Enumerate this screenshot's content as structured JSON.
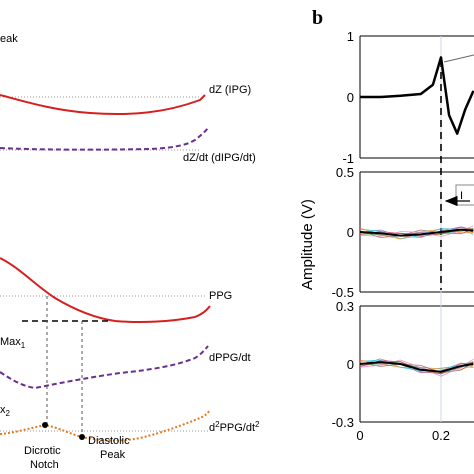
{
  "panel_a": {
    "partial_label": "eak",
    "signals": {
      "impedance": "dZ (IPG)",
      "impedance_derivative": "dZ/dt (dIPG/dt)",
      "ppg": "PPG",
      "ppg_first_derivative": "dPPG/dt",
      "ppg_second_derivative": "d²PPG/dt²"
    },
    "markers": {
      "max1": "Max₁",
      "max2": "x₂",
      "dicrotic_notch": [
        "Dicrotic",
        "Notch"
      ],
      "diastolic_peak": [
        "Diastolic",
        "Peak"
      ]
    },
    "colors": {
      "solid_trace": "#d62020",
      "dashed_trace": "#6a2f8f",
      "dotted_trace": "#e07b20"
    }
  },
  "panel_b": {
    "label": "b",
    "ylabel": "Amplitude (V)",
    "arrow_label": "I",
    "axes": [
      {
        "id": "top",
        "ylim": [
          -1,
          1
        ],
        "ticks": [
          "1",
          "0",
          "-1"
        ]
      },
      {
        "id": "middle",
        "ylim": [
          -0.5,
          0.5
        ],
        "ticks": [
          "0.5",
          "0",
          "-0.5"
        ]
      },
      {
        "id": "bottom",
        "ylim": [
          -0.3,
          0.3
        ],
        "ticks": [
          "0.3",
          "0",
          "-0.3"
        ]
      }
    ],
    "x_ticks": [
      "0",
      "0.2"
    ]
  },
  "chart_data": {
    "type": "line",
    "xlabel": "",
    "ylabel": "Amplitude (V)",
    "x_ticks": [
      0,
      0.2
    ],
    "marker_x": 0.2,
    "panels": [
      {
        "ylim": [
          -1,
          1
        ],
        "series": [
          {
            "x": [
              0,
              0.05,
              0.1,
              0.15,
              0.18,
              0.2,
              0.22,
              0.24,
              0.26,
              0.28
            ],
            "y": [
              0,
              0,
              0.02,
              0.05,
              0.2,
              0.65,
              -0.3,
              -0.6,
              -0.2,
              0.1
            ]
          }
        ]
      },
      {
        "ylim": [
          -0.5,
          0.5
        ],
        "series": [
          {
            "x": [
              0,
              0.05,
              0.1,
              0.15,
              0.2,
              0.25,
              0.28
            ],
            "y": [
              0,
              -0.01,
              -0.03,
              -0.02,
              0,
              0.02,
              0.01
            ]
          }
        ]
      },
      {
        "ylim": [
          -0.3,
          0.3
        ],
        "series": [
          {
            "x": [
              0,
              0.05,
              0.1,
              0.15,
              0.2,
              0.25,
              0.28
            ],
            "y": [
              0,
              0.01,
              0,
              -0.03,
              -0.04,
              -0.01,
              0
            ]
          }
        ]
      }
    ]
  }
}
